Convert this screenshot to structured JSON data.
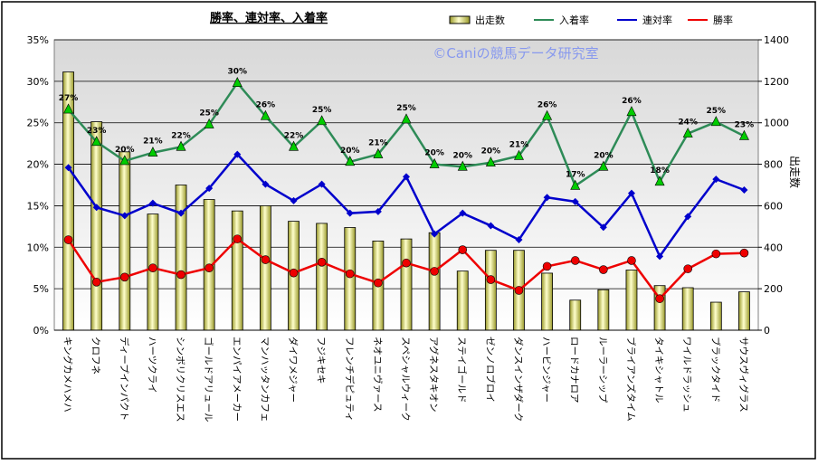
{
  "chart_data": {
    "type": "combo",
    "title": "勝率、連対率、入着率",
    "annotation": "©Caniの競馬データ研究室",
    "y2_label": "出走数",
    "categories": [
      "キングカメハメハ",
      "クロフネ",
      "ディープインパクト",
      "ハーツクライ",
      "シンボリクリスエス",
      "ゴールドアリュール",
      "エンパイアメーカー",
      "マンハッタンカフェ",
      "ダイワメジャー",
      "フジキセキ",
      "フレンチデピュティ",
      "ネオユニヴァース",
      "スペシャルウィーク",
      "アグネスタキオン",
      "ステイゴールド",
      "ゼンノロブロイ",
      "ダンスインザダーク",
      "ハービンジャー",
      "ロードカナロア",
      "ルーラーシップ",
      "ブライアンズタイム",
      "タイキシャトル",
      "ワイルドラッシュ",
      "ブラックタイド",
      "サウスヴィグラス"
    ],
    "series": [
      {
        "name": "出走数",
        "type": "bar",
        "axis": "y2",
        "color": "#eeee99",
        "values": [
          1245,
          1005,
          860,
          560,
          700,
          630,
          575,
          600,
          525,
          515,
          495,
          430,
          440,
          470,
          285,
          385,
          385,
          275,
          145,
          195,
          290,
          215,
          205,
          135,
          185
        ]
      },
      {
        "name": "入着率",
        "type": "line",
        "marker": "triangle",
        "color": "#2e8b57",
        "values": [
          26.6,
          22.7,
          20.4,
          21.4,
          22.1,
          24.8,
          29.8,
          25.8,
          22.1,
          25.2,
          20.3,
          21.2,
          25.4,
          20.0,
          19.7,
          20.2,
          21.0,
          25.8,
          17.4,
          19.7,
          26.3,
          17.9,
          23.7,
          25.1,
          23.4
        ],
        "value_labels": [
          "27%",
          "23%",
          "20%",
          "21%",
          "22%",
          "25%",
          "30%",
          "26%",
          "22%",
          "25%",
          "20%",
          "21%",
          "25%",
          "20%",
          "20%",
          "20%",
          "21%",
          "26%",
          "17%",
          "20%",
          "26%",
          "18%",
          "24%",
          "25%",
          "23%"
        ]
      },
      {
        "name": "連対率",
        "type": "line",
        "marker": "diamond",
        "color": "#0000cc",
        "values": [
          19.6,
          14.8,
          13.8,
          15.3,
          14.1,
          17.1,
          21.2,
          17.6,
          15.6,
          17.6,
          14.1,
          14.3,
          18.5,
          11.6,
          14.1,
          12.6,
          10.9,
          16.0,
          15.5,
          12.4,
          16.5,
          8.9,
          13.7,
          18.2,
          16.9
        ]
      },
      {
        "name": "勝率",
        "type": "line",
        "marker": "circle",
        "color": "#ee0000",
        "values": [
          10.9,
          5.8,
          6.4,
          7.5,
          6.7,
          7.5,
          11.0,
          8.5,
          6.9,
          8.2,
          6.8,
          5.7,
          8.1,
          7.1,
          9.7,
          6.1,
          4.8,
          7.7,
          8.4,
          7.3,
          8.4,
          3.8,
          7.4,
          9.2,
          9.3
        ]
      }
    ],
    "ylim": [
      0,
      35
    ],
    "yticks": [
      {
        "value": 0,
        "label": "0%"
      },
      {
        "value": 5,
        "label": "5%"
      },
      {
        "value": 10,
        "label": "10%"
      },
      {
        "value": 15,
        "label": "15%"
      },
      {
        "value": 20,
        "label": "20%"
      },
      {
        "value": 25,
        "label": "25%"
      },
      {
        "value": 30,
        "label": "30%"
      },
      {
        "value": 35,
        "label": "35%"
      }
    ],
    "y2lim": [
      0,
      1400
    ],
    "y2ticks": [
      0,
      200,
      400,
      600,
      800,
      1000,
      1200,
      1400
    ],
    "grid": true
  }
}
